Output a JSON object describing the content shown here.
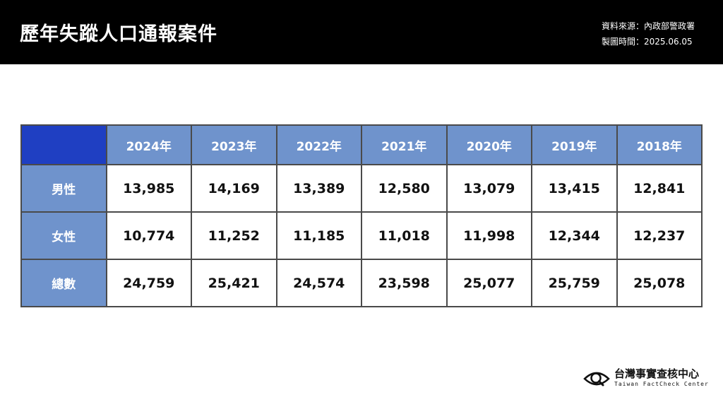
{
  "header": {
    "title": "歷年失蹤人口通報案件",
    "source": "資料來源：內政部警政署",
    "date": "製圖時間：2025.06.05"
  },
  "chart_data": {
    "type": "table",
    "columns": [
      "2024年",
      "2023年",
      "2022年",
      "2021年",
      "2020年",
      "2019年",
      "2018年"
    ],
    "rows": [
      {
        "label": "男性",
        "values": [
          "13,985",
          "14,169",
          "13,389",
          "12,580",
          "13,079",
          "13,415",
          "12,841"
        ]
      },
      {
        "label": "女性",
        "values": [
          "10,774",
          "11,252",
          "11,185",
          "11,018",
          "11,998",
          "12,344",
          "12,237"
        ]
      },
      {
        "label": "總數",
        "values": [
          "24,759",
          "25,421",
          "24,574",
          "23,598",
          "25,077",
          "25,759",
          "25,078"
        ]
      }
    ]
  },
  "colors": {
    "header_bg": "#000000",
    "cell_header_bg": "#6f93cc",
    "corner_bg": "#1f3fc2"
  },
  "logo": {
    "name_cn": "台灣事實查核中心",
    "name_en": "Taiwan FactCheck Center",
    "icon": "eye-magnifier-icon"
  }
}
